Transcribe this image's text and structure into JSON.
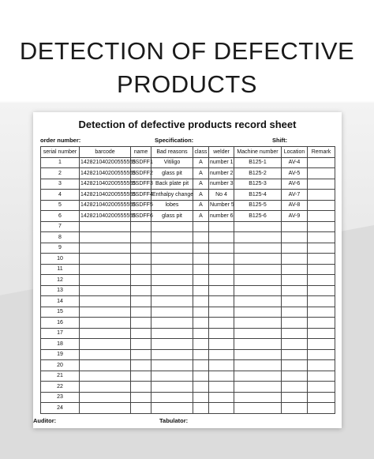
{
  "headline": [
    "DETECTION OF DEFECTIVE",
    "PRODUCTS"
  ],
  "sheet": {
    "title": "Detection of defective products record sheet",
    "order_number_label": "order number:",
    "specification_label": "Specification:",
    "shift_label": "Shift:",
    "auditor_label": "Auditor:",
    "tabulator_label": "Tabulator:"
  },
  "table": {
    "headers": [
      "serial number",
      "barcode",
      "name",
      "Bad reasons",
      "class",
      "welder",
      "Machine number",
      "Location",
      "Remark"
    ],
    "rows": [
      [
        "1",
        "142821040200555555",
        "SSDFF1",
        "Vitiligo",
        "A",
        "number 1",
        "B125-1",
        "AV-4",
        ""
      ],
      [
        "2",
        "142821040200555555",
        "SSDFF2",
        "glass pit",
        "A",
        "number 2",
        "B125-2",
        "AV-5",
        ""
      ],
      [
        "3",
        "142821040200555555",
        "SSDFF3",
        "Back plate pit",
        "A",
        "number 3",
        "B125-3",
        "AV-6",
        ""
      ],
      [
        "4",
        "142821040200555555",
        "SSDFF4",
        "Enthalpy change",
        "A",
        "No 4",
        "B125-4",
        "AV-7",
        ""
      ],
      [
        "5",
        "142821040200555555",
        "SSDFF5",
        "lobes",
        "A",
        "Number 5",
        "B125-5",
        "AV-8",
        ""
      ],
      [
        "6",
        "142821040200555555",
        "SSDFF6",
        "glass pit",
        "A",
        "number 6",
        "B125-6",
        "AV-9",
        ""
      ],
      [
        "7",
        "",
        "",
        "",
        "",
        "",
        "",
        "",
        ""
      ],
      [
        "8",
        "",
        "",
        "",
        "",
        "",
        "",
        "",
        ""
      ],
      [
        "9",
        "",
        "",
        "",
        "",
        "",
        "",
        "",
        ""
      ],
      [
        "10",
        "",
        "",
        "",
        "",
        "",
        "",
        "",
        ""
      ],
      [
        "11",
        "",
        "",
        "",
        "",
        "",
        "",
        "",
        ""
      ],
      [
        "12",
        "",
        "",
        "",
        "",
        "",
        "",
        "",
        ""
      ],
      [
        "13",
        "",
        "",
        "",
        "",
        "",
        "",
        "",
        ""
      ],
      [
        "14",
        "",
        "",
        "",
        "",
        "",
        "",
        "",
        ""
      ],
      [
        "15",
        "",
        "",
        "",
        "",
        "",
        "",
        "",
        ""
      ],
      [
        "16",
        "",
        "",
        "",
        "",
        "",
        "",
        "",
        ""
      ],
      [
        "17",
        "",
        "",
        "",
        "",
        "",
        "",
        "",
        ""
      ],
      [
        "18",
        "",
        "",
        "",
        "",
        "",
        "",
        "",
        ""
      ],
      [
        "19",
        "",
        "",
        "",
        "",
        "",
        "",
        "",
        ""
      ],
      [
        "20",
        "",
        "",
        "",
        "",
        "",
        "",
        "",
        ""
      ],
      [
        "21",
        "",
        "",
        "",
        "",
        "",
        "",
        "",
        ""
      ],
      [
        "22",
        "",
        "",
        "",
        "",
        "",
        "",
        "",
        ""
      ],
      [
        "23",
        "",
        "",
        "",
        "",
        "",
        "",
        "",
        ""
      ],
      [
        "24",
        "",
        "",
        "",
        "",
        "",
        "",
        "",
        ""
      ]
    ]
  }
}
